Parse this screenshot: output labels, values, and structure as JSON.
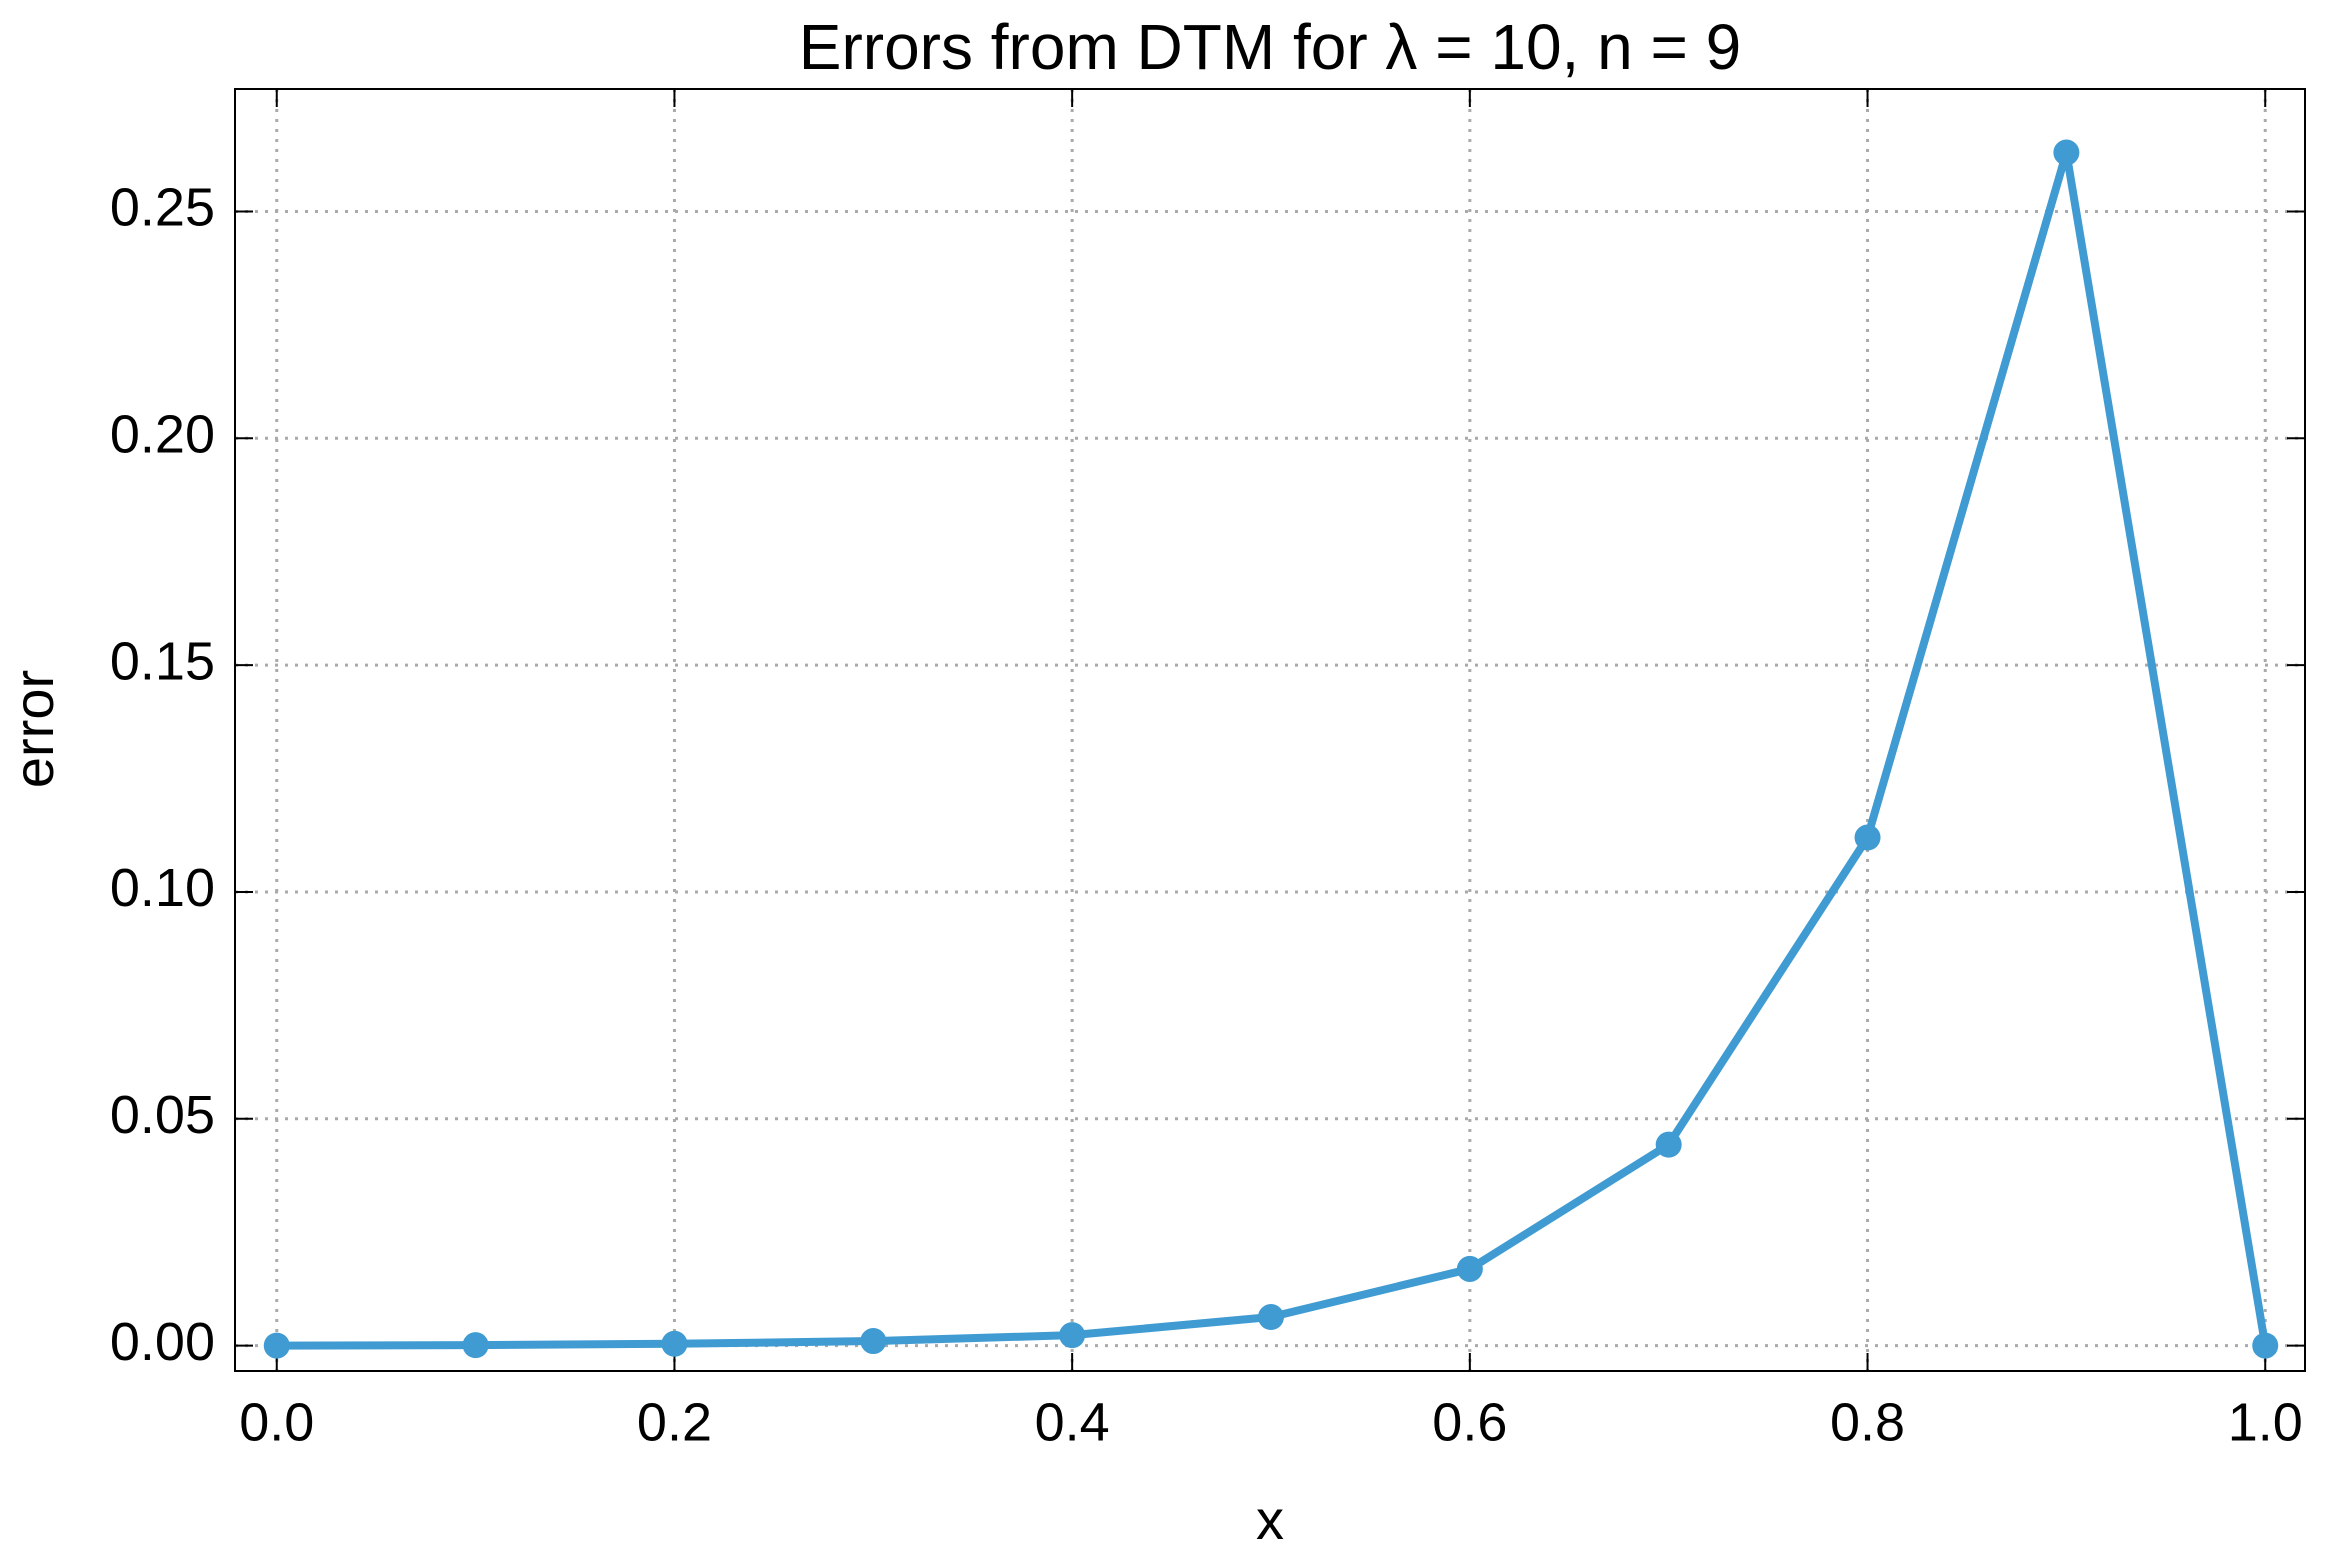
{
  "chart_data": {
    "type": "line",
    "title": "Errors from DTM for λ = 10, n = 9",
    "x_label": "x",
    "y_label": "error",
    "x": [
      0,
      0.1,
      0.2,
      0.3,
      0.4,
      0.5,
      0.6,
      0.7,
      0.8,
      0.9,
      1
    ],
    "values": [
      0,
      0.0001,
      0.0004,
      0.001,
      0.0023,
      0.0063,
      0.0169,
      0.0443,
      0.112,
      0.263,
      0
    ],
    "color": "#3f9bd2",
    "xlim": [
      -0.021,
      1.02
    ],
    "xticks": [
      {
        "value": 0,
        "label": "0.0"
      },
      0.2,
      0.4,
      0.6,
      0.8,
      {
        "value": 1,
        "label": "1.0"
      }
    ],
    "ylim": [
      -0.0056,
      0.277
    ],
    "yticks": [
      {
        "value": 0,
        "label": "0.00"
      },
      0.05,
      {
        "value": 0.1,
        "label": "0.10"
      },
      0.15,
      {
        "value": 0.2,
        "label": "0.20"
      },
      0.25
    ],
    "grid": true
  }
}
